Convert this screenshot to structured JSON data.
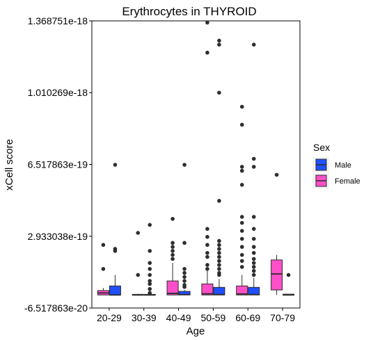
{
  "chart_data": {
    "type": "box",
    "title": "Erythrocytes in THYROID",
    "xlabel": "Age",
    "ylabel": "xCell score",
    "categories": [
      "20-29",
      "30-39",
      "40-49",
      "50-59",
      "60-69",
      "70-79"
    ],
    "ylim": [
      -6.517863e-20,
      1.368751e-18
    ],
    "yticks": [
      -6.517863e-20,
      2.933038e-19,
      6.517863e-19,
      1.010269e-18,
      1.368751e-18
    ],
    "ytick_labels": [
      "-6.517863e-20",
      "2.933038e-19",
      "6.517863e-19",
      "1.010269e-18",
      "1.368751e-18"
    ],
    "grid": false,
    "legend": {
      "title": "Sex",
      "position": "right"
    },
    "series": [
      {
        "name": "Male",
        "color": "#1F4FFF",
        "boxes": [
          {
            "category": "20-29",
            "q1": 0,
            "median": 0,
            "q3": 4.5e-20,
            "whisker_low": 0,
            "whisker_high": 1e-19,
            "outliers": [
              2.2e-19,
              2.3e-19,
              6.5e-19
            ]
          },
          {
            "category": "30-39",
            "q1": 0,
            "median": 0,
            "q3": 3e-21,
            "whisker_low": 0,
            "whisker_high": 5e-21,
            "outliers": [
              1e-20,
              3e-20,
              5.5e-20,
              7e-20,
              1e-19,
              1.3e-19,
              1.6e-19,
              2.2e-19,
              3.5e-19
            ]
          },
          {
            "category": "40-49",
            "q1": 0,
            "median": 2e-21,
            "q3": 1.8e-20,
            "whisker_low": 0,
            "whisker_high": 2.5e-20,
            "outliers": [
              4e-20,
              5e-20,
              7e-20,
              9e-20,
              1.1e-19,
              1.3e-19,
              2.6e-19,
              6.5e-19
            ]
          },
          {
            "category": "50-59",
            "q1": 0,
            "median": 2e-21,
            "q3": 3.8e-20,
            "whisker_low": 0,
            "whisker_high": 8e-20,
            "outliers": [
              1e-19,
              1.1e-19,
              1.3e-19,
              1.5e-19,
              1.7e-19,
              1.9e-19,
              2.1e-19,
              2.3e-19,
              2.5e-19,
              2.7e-19,
              4.7e-19,
              1.01e-18,
              1.25e-18,
              1.27e-18
            ]
          },
          {
            "category": "60-69",
            "q1": 0,
            "median": 2e-21,
            "q3": 3.8e-20,
            "whisker_low": 0,
            "whisker_high": 8.5e-20,
            "outliers": [
              1e-19,
              1.2e-19,
              1.4e-19,
              1.6e-19,
              1.8e-19,
              2.1e-19,
              2.4e-19,
              2.8e-19,
              3.3e-19,
              3.9e-19,
              6.4e-19,
              6.8e-19,
              1.25e-18
            ]
          },
          {
            "category": "70-79",
            "q1": 0,
            "median": 0,
            "q3": 4e-21,
            "whisker_low": 0,
            "whisker_high": 5e-21,
            "outliers": [
              1e-19
            ]
          }
        ]
      },
      {
        "name": "Female",
        "color": "#FF4FC8",
        "boxes": [
          {
            "category": "20-29",
            "q1": 0,
            "median": 1e-20,
            "q3": 2.2e-20,
            "whisker_low": 0,
            "whisker_high": 3.5e-20,
            "outliers": [
              1.3e-19,
              2.5e-19
            ]
          },
          {
            "category": "30-39",
            "q1": 0,
            "median": 0,
            "q3": 3e-21,
            "whisker_low": 0,
            "whisker_high": 5e-21,
            "outliers": [
              1e-19,
              3.1e-19
            ]
          },
          {
            "category": "40-49",
            "q1": 0,
            "median": 8e-21,
            "q3": 7e-20,
            "whisker_low": 0,
            "whisker_high": 1.6e-19,
            "outliers": [
              1.8e-19,
              2e-19,
              2.2e-19,
              2.4e-19,
              2.6e-19,
              3.8e-19
            ]
          },
          {
            "category": "50-59",
            "q1": 0,
            "median": 6e-21,
            "q3": 5.5e-20,
            "whisker_low": 0,
            "whisker_high": 1.2e-19,
            "outliers": [
              1.3e-19,
              1.5e-19,
              1.9e-19,
              2.1e-19,
              2.5e-19,
              2.9e-19,
              3.3e-19,
              1.21e-18,
              1.36e-18
            ]
          },
          {
            "category": "60-69",
            "q1": 0,
            "median": 5e-21,
            "q3": 4.5e-20,
            "whisker_low": 0,
            "whisker_high": 1e-19,
            "outliers": [
              1.4e-19,
              1.7e-19,
              2e-19,
              2.4e-19,
              2.8e-19,
              3.2e-19,
              3.6e-19,
              3.9e-19,
              5.5e-19,
              6.2e-19,
              6.4e-19,
              8.5e-19,
              9.4e-19
            ]
          },
          {
            "category": "70-79",
            "q1": 2.5e-20,
            "median": 1.05e-19,
            "q3": 1.75e-19,
            "whisker_low": 0,
            "whisker_high": 2e-19,
            "outliers": [
              6e-19
            ]
          }
        ]
      }
    ]
  }
}
